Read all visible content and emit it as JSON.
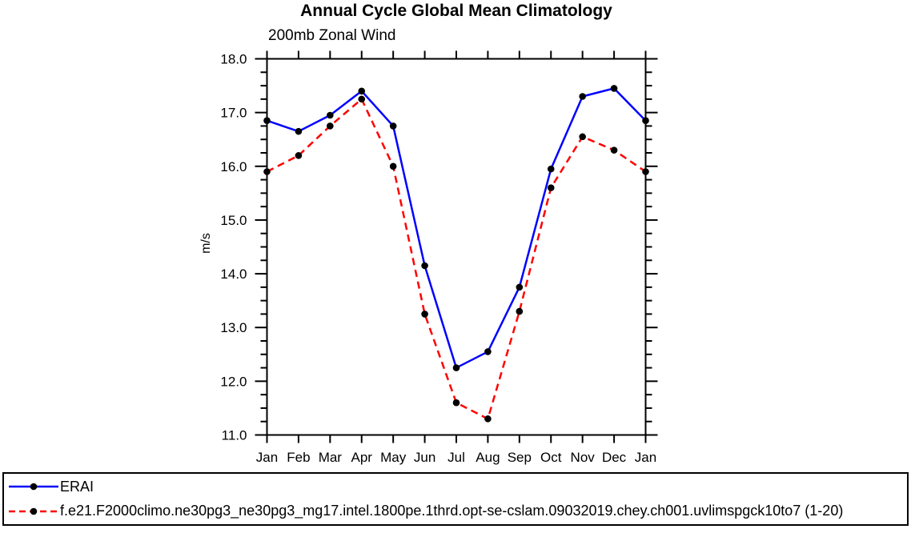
{
  "figure": {
    "title": "Annual Cycle Global Mean Climatology",
    "subtitle": "200mb Zonal Wind",
    "ylabel": "m/s"
  },
  "chart_data": {
    "type": "line",
    "title": "Annual Cycle Global Mean Climatology",
    "subtitle": "200mb Zonal Wind",
    "xlabel": "",
    "ylabel": "m/s",
    "categories": [
      "Jan",
      "Feb",
      "Mar",
      "Apr",
      "May",
      "Jun",
      "Jul",
      "Aug",
      "Sep",
      "Oct",
      "Nov",
      "Dec",
      "Jan"
    ],
    "series": [
      {
        "name": "ERAI",
        "color": "#0000ff",
        "style": "solid",
        "marker": "circle",
        "values": [
          16.85,
          16.65,
          16.95,
          17.4,
          16.75,
          14.15,
          12.25,
          12.55,
          13.75,
          15.95,
          17.3,
          17.45,
          16.85
        ]
      },
      {
        "name": "f.e21.F2000climo.ne30pg3_ne30pg3_mg17.intel.1800pe.1thrd.opt-se-cslam.09032019.chey.ch001.uvlimspgck10to7 (1-20)",
        "color": "#ff0000",
        "style": "dashed",
        "marker": "circle",
        "values": [
          15.9,
          16.2,
          16.75,
          17.25,
          16.0,
          13.25,
          11.6,
          11.3,
          13.3,
          15.6,
          16.55,
          16.3,
          15.9
        ]
      }
    ],
    "marker_color": "#000000",
    "axis_color": "#000000",
    "ylim": [
      11.0,
      18.0
    ],
    "ytick_major": 1.0,
    "ytick_minor": 0.25,
    "ytick_labels": [
      "11.0",
      "12.0",
      "13.0",
      "14.0",
      "15.0",
      "16.0",
      "17.0",
      "18.0"
    ],
    "grid": false,
    "legend_position": "bottom"
  }
}
